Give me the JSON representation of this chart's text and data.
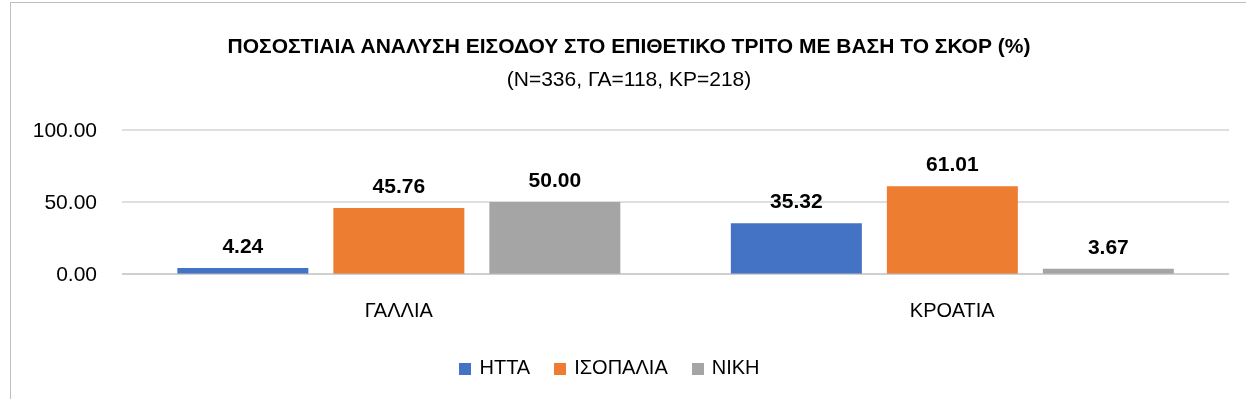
{
  "chart_data": {
    "type": "bar",
    "title": "ΠΟΣΟΣΤΙΑΙΑ ΑΝΑΛΥΣΗ ΕΙΣΟΔΟΥ ΣΤΟ ΕΠΙΘΕΤΙΚΟ ΤΡΙΤΟ ΜΕ ΒΑΣΗ ΤΟ ΣΚΟΡ (%)",
    "subtitle": "(N=336, ΓΑ=118, ΚΡ=218)",
    "categories": [
      "ΓΑΛΛΙΑ",
      "ΚΡΟΑΤΙΑ"
    ],
    "series": [
      {
        "name": "ΗΤΤΑ",
        "color": "#4472c4",
        "values": [
          4.24,
          35.32
        ],
        "value_labels": [
          "4.24",
          "35.32"
        ]
      },
      {
        "name": "ΙΣΟΠΑΛΙΑ",
        "color": "#ed7d31",
        "values": [
          45.76,
          61.01
        ],
        "value_labels": [
          "45.76",
          "61.01"
        ]
      },
      {
        "name": "ΝΙΚΗ",
        "color": "#a5a5a5",
        "values": [
          50,
          3.67
        ],
        "value_labels": [
          "50.00",
          "3.67"
        ]
      }
    ],
    "ylim": [
      0,
      100
    ],
    "yticks": [
      {
        "value": 0,
        "label": "0.00"
      },
      {
        "value": 50,
        "label": "50.00"
      },
      {
        "value": 100,
        "label": "100.00"
      }
    ],
    "grid": "y",
    "legend": "bottom"
  }
}
